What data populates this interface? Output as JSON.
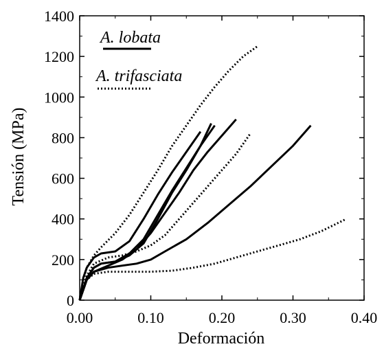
{
  "chart_data": {
    "type": "line",
    "xlabel": "Deformación",
    "ylabel": "Tensión (MPa)",
    "xlim": [
      0,
      0.4
    ],
    "ylim": [
      0,
      1400
    ],
    "x_ticks": [
      "0.00",
      "0.10",
      "0.20",
      "0.30",
      "0.40"
    ],
    "y_ticks": [
      "0",
      "200",
      "400",
      "600",
      "800",
      "1000",
      "1200",
      "1400"
    ],
    "grid": false,
    "legend_position": "top-left",
    "legend": [
      {
        "label": "A. lobata",
        "style": "solid"
      },
      {
        "label": "A. trifasciata",
        "style": "dotted"
      }
    ],
    "series": [
      {
        "species": "A. lobata",
        "style": "solid",
        "x": [
          0,
          0.005,
          0.01,
          0.02,
          0.03,
          0.05,
          0.07,
          0.09,
          0.11,
          0.13,
          0.15,
          0.17
        ],
        "y": [
          0,
          110,
          160,
          210,
          230,
          240,
          290,
          400,
          520,
          630,
          730,
          830
        ]
      },
      {
        "species": "A. lobata",
        "style": "solid",
        "x": [
          0,
          0.01,
          0.02,
          0.03,
          0.05,
          0.07,
          0.09,
          0.11,
          0.13,
          0.15,
          0.17,
          0.19
        ],
        "y": [
          0,
          110,
          160,
          180,
          190,
          230,
          300,
          420,
          540,
          650,
          760,
          860
        ]
      },
      {
        "species": "A. lobata",
        "style": "solid",
        "x": [
          0,
          0.01,
          0.02,
          0.03,
          0.05,
          0.07,
          0.09,
          0.11,
          0.13,
          0.15,
          0.17,
          0.185
        ],
        "y": [
          0,
          110,
          160,
          180,
          190,
          220,
          280,
          400,
          530,
          640,
          760,
          870
        ]
      },
      {
        "species": "A. lobata",
        "style": "solid",
        "x": [
          0,
          0.01,
          0.02,
          0.04,
          0.06,
          0.08,
          0.1,
          0.12,
          0.14,
          0.16,
          0.18,
          0.2,
          0.22
        ],
        "y": [
          0,
          100,
          140,
          170,
          200,
          250,
          330,
          430,
          530,
          640,
          730,
          810,
          890
        ]
      },
      {
        "species": "A. lobata",
        "style": "solid",
        "x": [
          0,
          0.01,
          0.02,
          0.04,
          0.06,
          0.08,
          0.1,
          0.12,
          0.15,
          0.18,
          0.21,
          0.24,
          0.27,
          0.3,
          0.325
        ],
        "y": [
          0,
          100,
          140,
          160,
          170,
          180,
          200,
          240,
          300,
          380,
          470,
          560,
          660,
          760,
          860
        ]
      },
      {
        "species": "A. trifasciata",
        "style": "dotted",
        "x": [
          0,
          0.005,
          0.01,
          0.02,
          0.03,
          0.05,
          0.07,
          0.09,
          0.11,
          0.13,
          0.15,
          0.17,
          0.19,
          0.21,
          0.23,
          0.25
        ],
        "y": [
          0,
          100,
          160,
          220,
          260,
          330,
          420,
          530,
          640,
          760,
          860,
          960,
          1050,
          1130,
          1200,
          1250
        ]
      },
      {
        "species": "A. trifasciata",
        "style": "dotted",
        "x": [
          0,
          0.01,
          0.02,
          0.04,
          0.06,
          0.08,
          0.1,
          0.12,
          0.14,
          0.16,
          0.18,
          0.2,
          0.22,
          0.24
        ],
        "y": [
          0,
          120,
          180,
          210,
          220,
          240,
          270,
          320,
          400,
          480,
          560,
          640,
          720,
          820
        ]
      },
      {
        "species": "A. trifasciata",
        "style": "dotted",
        "x": [
          0,
          0.01,
          0.02,
          0.04,
          0.07,
          0.1,
          0.13,
          0.16,
          0.19,
          0.22,
          0.25,
          0.28,
          0.31,
          0.34,
          0.375
        ],
        "y": [
          0,
          100,
          130,
          140,
          140,
          140,
          145,
          160,
          180,
          210,
          240,
          270,
          300,
          340,
          400
        ]
      }
    ]
  }
}
